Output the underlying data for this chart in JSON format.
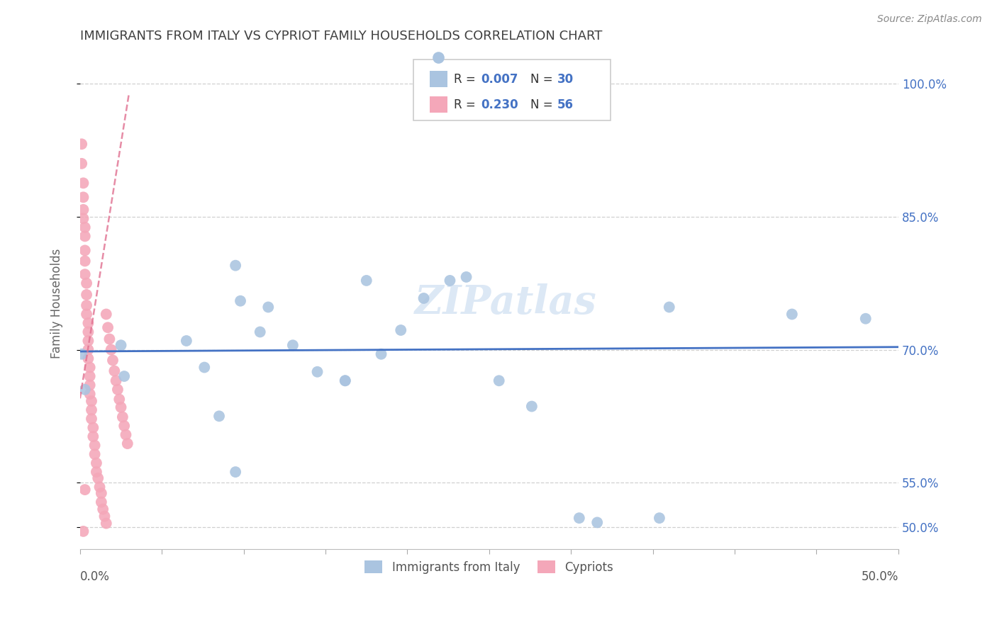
{
  "title": "IMMIGRANTS FROM ITALY VS CYPRIOT FAMILY HOUSEHOLDS CORRELATION CHART",
  "source": "Source: ZipAtlas.com",
  "ylabel": "Family Households",
  "color_italy": "#aac4e0",
  "color_cypriot": "#f4a7b9",
  "color_italy_line": "#4472c4",
  "color_cypriot_line": "#e07090",
  "color_text": "#4472c4",
  "color_title": "#404040",
  "color_source": "#888888",
  "xmin": 0.0,
  "xmax": 0.5,
  "ymin": 0.475,
  "ymax": 1.03,
  "yticks": [
    0.5,
    0.55,
    0.7,
    0.85,
    1.0
  ],
  "ytick_labels": [
    "50.0%",
    "55.0%",
    "70.0%",
    "85.0%",
    "100.0%"
  ],
  "legend_italy": "Immigrants from Italy",
  "legend_cypriot": "Cypriots",
  "r_italy": "0.007",
  "n_italy": "30",
  "r_cypriot": "0.230",
  "n_cypriot": "56",
  "italy_x": [
    0.001,
    0.003,
    0.025,
    0.027,
    0.065,
    0.076,
    0.095,
    0.11,
    0.098,
    0.115,
    0.13,
    0.145,
    0.085,
    0.162,
    0.175,
    0.095,
    0.184,
    0.21,
    0.196,
    0.226,
    0.162,
    0.236,
    0.256,
    0.305,
    0.316,
    0.276,
    0.36,
    0.354,
    0.435,
    0.48
  ],
  "italy_y": [
    0.695,
    0.655,
    0.705,
    0.67,
    0.71,
    0.68,
    0.795,
    0.72,
    0.755,
    0.748,
    0.705,
    0.675,
    0.625,
    0.665,
    0.778,
    0.562,
    0.695,
    0.758,
    0.722,
    0.778,
    0.665,
    0.782,
    0.665,
    0.51,
    0.505,
    0.636,
    0.748,
    0.51,
    0.74,
    0.735
  ],
  "cypriot_x": [
    0.001,
    0.001,
    0.002,
    0.002,
    0.002,
    0.002,
    0.003,
    0.003,
    0.003,
    0.003,
    0.003,
    0.004,
    0.004,
    0.004,
    0.004,
    0.005,
    0.005,
    0.005,
    0.005,
    0.005,
    0.006,
    0.006,
    0.006,
    0.006,
    0.007,
    0.007,
    0.007,
    0.008,
    0.008,
    0.009,
    0.009,
    0.01,
    0.01,
    0.011,
    0.012,
    0.013,
    0.013,
    0.014,
    0.015,
    0.016,
    0.016,
    0.017,
    0.018,
    0.019,
    0.02,
    0.021,
    0.022,
    0.023,
    0.024,
    0.025,
    0.026,
    0.027,
    0.028,
    0.029,
    0.002,
    0.003
  ],
  "cypriot_y": [
    0.932,
    0.91,
    0.888,
    0.872,
    0.858,
    0.848,
    0.838,
    0.828,
    0.812,
    0.8,
    0.785,
    0.775,
    0.762,
    0.75,
    0.74,
    0.73,
    0.72,
    0.71,
    0.7,
    0.69,
    0.68,
    0.67,
    0.66,
    0.65,
    0.642,
    0.632,
    0.622,
    0.612,
    0.602,
    0.592,
    0.582,
    0.572,
    0.562,
    0.555,
    0.545,
    0.538,
    0.528,
    0.52,
    0.512,
    0.504,
    0.74,
    0.725,
    0.712,
    0.7,
    0.688,
    0.676,
    0.665,
    0.655,
    0.644,
    0.635,
    0.624,
    0.614,
    0.604,
    0.594,
    0.495,
    0.542
  ],
  "italy_trend_x": [
    0.0,
    0.5
  ],
  "italy_trend_y": [
    0.698,
    0.703
  ],
  "cypriot_trend_x": [
    0.0,
    0.03
  ],
  "cypriot_trend_y": [
    0.645,
    0.99
  ]
}
